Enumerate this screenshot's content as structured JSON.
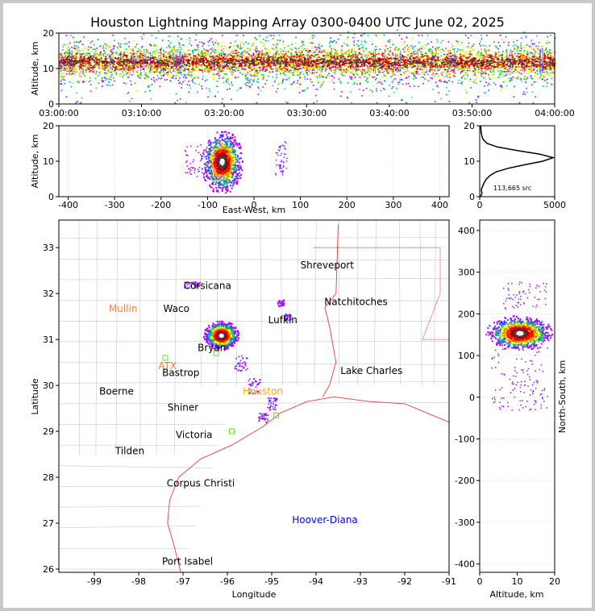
{
  "title": "Houston Lightning Mapping Array 0300-0400 UTC June 02, 2025",
  "chart_data": [
    {
      "type": "heatmap",
      "panel": "altitude-time",
      "ylabel": "Altitude, km",
      "x_ticks": [
        "03:00:00",
        "03:10:00",
        "03:20:00",
        "03:30:00",
        "03:40:00",
        "03:50:00",
        "04:00:00"
      ],
      "y_ticks": [
        0,
        10,
        20
      ],
      "ylim": [
        0,
        20
      ],
      "core_altitude_km": 12
    },
    {
      "type": "heatmap",
      "panel": "east-west-altitude",
      "xlabel": "East-West, km",
      "ylabel": "Altitude, km",
      "x_ticks": [
        -400,
        -300,
        -200,
        -100,
        0,
        100,
        200,
        300,
        400
      ],
      "y_ticks": [
        0,
        10,
        20
      ],
      "xlim": [
        -420,
        420
      ],
      "ylim": [
        0,
        20
      ]
    },
    {
      "type": "line",
      "panel": "altitude-histogram",
      "x_ticks": [
        0,
        5000
      ],
      "y_ticks": [
        0,
        10,
        20
      ],
      "xlim": [
        0,
        5000
      ],
      "ylim": [
        0,
        20
      ],
      "annotation": "113,665 src",
      "points": [
        [
          60,
          0
        ],
        [
          150,
          1
        ],
        [
          100,
          2
        ],
        [
          200,
          3
        ],
        [
          300,
          4
        ],
        [
          450,
          5
        ],
        [
          700,
          6
        ],
        [
          1100,
          7
        ],
        [
          1900,
          8
        ],
        [
          3000,
          9
        ],
        [
          4200,
          10
        ],
        [
          4900,
          11
        ],
        [
          4000,
          12
        ],
        [
          2500,
          13
        ],
        [
          1200,
          14
        ],
        [
          500,
          15
        ],
        [
          250,
          16
        ],
        [
          150,
          17
        ],
        [
          100,
          18
        ],
        [
          80,
          19
        ],
        [
          60,
          20
        ]
      ]
    },
    {
      "type": "heatmap",
      "panel": "plan-view-map",
      "xlabel": "Longitude",
      "ylabel": "Latitude",
      "x_ticks": [
        -99,
        -98,
        -97,
        -96,
        -95,
        -94,
        -93,
        -92,
        -91
      ],
      "y_ticks": [
        26,
        27,
        28,
        29,
        30,
        31,
        32,
        33
      ],
      "xlim": [
        -99.8,
        -91
      ],
      "ylim": [
        25.93,
        33.6
      ],
      "cities": [
        {
          "name": "Shreveport",
          "lon": -93.75,
          "lat": 32.55,
          "color": "#000000"
        },
        {
          "name": "Corsicana",
          "lon": -96.45,
          "lat": 32.1,
          "color": "#000000"
        },
        {
          "name": "Natchitoches",
          "lon": -93.1,
          "lat": 31.75,
          "color": "#000000"
        },
        {
          "name": "Mullin",
          "lon": -98.35,
          "lat": 31.6,
          "color": "#f08040"
        },
        {
          "name": "Waco",
          "lon": -97.15,
          "lat": 31.6,
          "color": "#000000"
        },
        {
          "name": "Lufkin",
          "lon": -94.75,
          "lat": 31.35,
          "color": "#000000"
        },
        {
          "name": "Bryan",
          "lon": -96.35,
          "lat": 30.75,
          "color": "#000000"
        },
        {
          "name": "ATX",
          "lon": -97.35,
          "lat": 30.35,
          "color": "#f08040"
        },
        {
          "name": "Bastrop",
          "lon": -97.05,
          "lat": 30.2,
          "color": "#000000"
        },
        {
          "name": "Lake Charles",
          "lon": -92.75,
          "lat": 30.25,
          "color": "#000000"
        },
        {
          "name": "Boerne",
          "lon": -98.5,
          "lat": 29.8,
          "color": "#000000"
        },
        {
          "name": "Houston",
          "lon": -95.2,
          "lat": 29.8,
          "color": "#ffa500"
        },
        {
          "name": "Shiner",
          "lon": -97.0,
          "lat": 29.45,
          "color": "#000000"
        },
        {
          "name": "Victoria",
          "lon": -96.75,
          "lat": 28.85,
          "color": "#000000"
        },
        {
          "name": "Tilden",
          "lon": -98.2,
          "lat": 28.5,
          "color": "#000000"
        },
        {
          "name": "Corpus Christi",
          "lon": -96.6,
          "lat": 27.8,
          "color": "#000000"
        },
        {
          "name": "Hoover-Diana",
          "lon": -93.8,
          "lat": 27.0,
          "color": "#0000ff"
        },
        {
          "name": "Port Isabel",
          "lon": -96.9,
          "lat": 26.1,
          "color": "#000000"
        }
      ]
    },
    {
      "type": "heatmap",
      "panel": "altitude-north-south",
      "xlabel": "Altitude, km",
      "ylabel": "North-South, km",
      "x_ticks": [
        0,
        10,
        20
      ],
      "y_ticks": [
        -400,
        -300,
        -200,
        -100,
        0,
        100,
        200,
        300,
        400
      ],
      "xlim": [
        0,
        20
      ],
      "ylim": [
        -420,
        425
      ]
    }
  ],
  "colors": {
    "ramp": [
      "#b000ff",
      "#4040ff",
      "#00c8ff",
      "#00d060",
      "#c8ff00",
      "#ffff00",
      "#ff9000",
      "#ff0000",
      "#a00000",
      "#404040",
      "#ffffff"
    ],
    "coast": "#e04040",
    "county": "#c8c8c8"
  }
}
